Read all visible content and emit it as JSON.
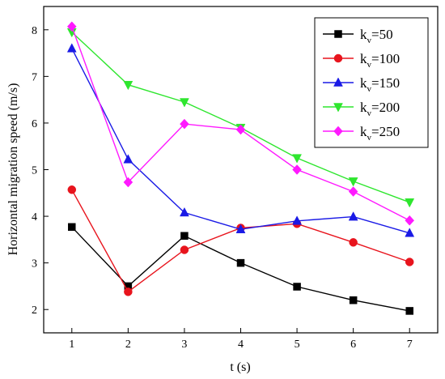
{
  "chart_data": {
    "type": "line",
    "xlabel": "t (s)",
    "ylabel": "Horizontal migration speed (m/s)",
    "xlim": [
      0.5,
      7.5
    ],
    "ylim": [
      1.5,
      8.5
    ],
    "x": [
      1,
      2,
      3,
      4,
      5,
      6,
      7
    ],
    "xticks": [
      1,
      2,
      3,
      4,
      5,
      6,
      7
    ],
    "yticks": [
      2,
      3,
      4,
      5,
      6,
      7,
      8
    ],
    "grid": false,
    "legend_position": "top-right",
    "series": [
      {
        "name": "k_v=50",
        "label_main": "k",
        "label_sub": "v",
        "label_rest": "=50",
        "color": "#000000",
        "marker": "square",
        "values": [
          3.77,
          2.5,
          3.58,
          3.0,
          2.49,
          2.2,
          1.97
        ]
      },
      {
        "name": "k_v=100",
        "label_main": "k",
        "label_sub": "v",
        "label_rest": "=100",
        "color": "#e8141d",
        "marker": "circle",
        "values": [
          4.57,
          2.38,
          3.28,
          3.75,
          3.84,
          3.44,
          3.02
        ]
      },
      {
        "name": "k_v=150",
        "label_main": "k",
        "label_sub": "v",
        "label_rest": "=150",
        "color": "#1a1ae6",
        "marker": "triangle-up",
        "values": [
          7.6,
          5.22,
          4.08,
          3.72,
          3.9,
          3.99,
          3.64
        ]
      },
      {
        "name": "k_v=200",
        "label_main": "k",
        "label_sub": "v",
        "label_rest": "=200",
        "color": "#2ee62e",
        "marker": "triangle-down",
        "values": [
          7.95,
          6.82,
          6.45,
          5.9,
          5.25,
          4.75,
          4.3
        ]
      },
      {
        "name": "k_v=250",
        "label_main": "k",
        "label_sub": "v",
        "label_rest": "=250",
        "color": "#ff19ff",
        "marker": "diamond",
        "values": [
          8.07,
          4.73,
          5.98,
          5.86,
          5.0,
          4.53,
          3.91
        ]
      }
    ]
  }
}
